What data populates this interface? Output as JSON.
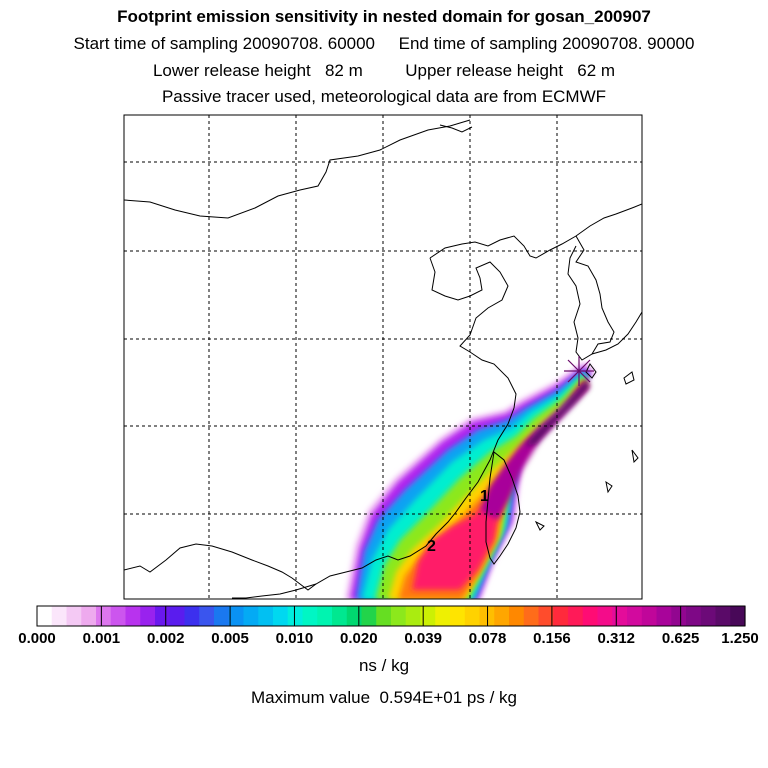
{
  "header": {
    "title": "Footprint emission sensitivity in nested domain for gosan_200907",
    "sampling_line": "Start time of sampling 20090708. 60000     End time of sampling 20090708. 90000",
    "release_line": "Lower release height   82 m         Upper release height   62 m",
    "tracer_line": "Passive tracer used, meteorological data are from ECMWF"
  },
  "map": {
    "region_labels": [
      "1",
      "2"
    ],
    "grid": "dashed"
  },
  "colorbar": {
    "tick_labels": [
      "0.000",
      "0.001",
      "0.002",
      "0.005",
      "0.010",
      "0.020",
      "0.039",
      "0.078",
      "0.156",
      "0.312",
      "0.625",
      "1.250"
    ],
    "colors": [
      "#ffffff",
      "#fbe6fb",
      "#f4c9f4",
      "#eeaaee",
      "#dd77ee",
      "#cc55ee",
      "#b833ee",
      "#9922ee",
      "#6a18ee",
      "#5a1cee",
      "#3c30ee",
      "#3a55ee",
      "#1a78f0",
      "#0a92f4",
      "#04aaf4",
      "#02c0f2",
      "#00d8f0",
      "#00eede",
      "#00f6c4",
      "#00f4b0",
      "#00e890",
      "#00d870",
      "#22d44a",
      "#66de22",
      "#8ce81c",
      "#aaec10",
      "#ccf004",
      "#eef002",
      "#ffe400",
      "#ffd200",
      "#ffbe00",
      "#ffa600",
      "#ff8800",
      "#ff6c1a",
      "#ff4c2c",
      "#ff2a3c",
      "#ff1a58",
      "#ff0c74",
      "#f40c8a",
      "#e40c9a",
      "#d20a9e",
      "#c0069a",
      "#a8049a",
      "#920690",
      "#7e0886",
      "#6c0a78",
      "#5a0a68",
      "#480858"
    ],
    "units": "ns / kg"
  },
  "footer": {
    "max_value": "Maximum value  0.594E+01 ps / kg"
  }
}
